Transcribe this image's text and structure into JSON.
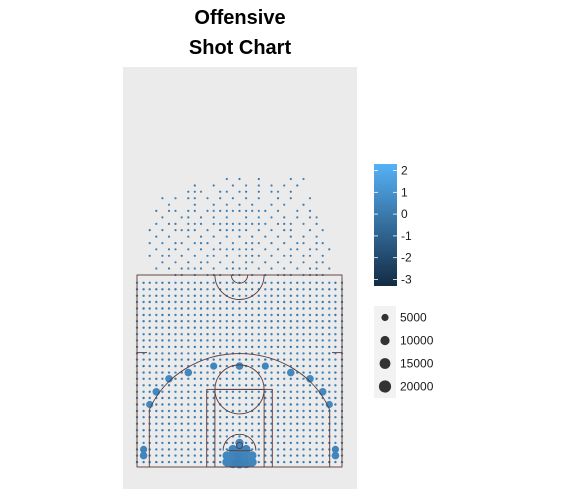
{
  "chart_data": {
    "type": "scatter",
    "title_lines": [
      "Offensive",
      "Shot Chart"
    ],
    "xlabel": "",
    "ylabel": "",
    "grid": false,
    "panel_background": "#ebebeb",
    "court_line_color": "#5a3a3a",
    "color_legend": {
      "ticks": [
        "2",
        "1",
        "0",
        "-1",
        "-2",
        "-3"
      ],
      "tick_values": [
        2,
        1,
        0,
        -1,
        -2,
        -3
      ],
      "range": [
        -3.3,
        2.3
      ],
      "low_color": "#132b43",
      "high_color": "#56b1f7",
      "placement": "right"
    },
    "size_legend": {
      "labels": [
        "5000",
        "10000",
        "15000",
        "20000"
      ],
      "values": [
        5000,
        10000,
        15000,
        20000
      ],
      "placement": "right"
    },
    "grid_x": [
      -25,
      -23.4,
      -21.9,
      -20.3,
      -18.8,
      -17.2,
      -15.6,
      -14.1,
      -12.5,
      -10.9,
      -9.4,
      -7.8,
      -6.3,
      -4.7,
      -3.1,
      -1.6,
      0,
      1.6,
      3.1,
      4.7,
      6.3,
      7.8,
      9.4,
      10.9,
      12.5,
      14.1,
      15.6,
      17.2,
      18.8,
      20.3,
      21.9,
      23.4,
      25
    ],
    "grid_y_rows": [
      1.2,
      2.8,
      4.3,
      5.9,
      7.5,
      9,
      10.6,
      12.2,
      13.7,
      15.3,
      16.9,
      18.4,
      20,
      21.6,
      23.1,
      24.7,
      26.3,
      27.8,
      29.4,
      31,
      32.5,
      34.1,
      35.7,
      37.2,
      38.8,
      40.4,
      41.9,
      43.5,
      45.1,
      46.6,
      48.2,
      49.8,
      51.3,
      52.9,
      54.5,
      56,
      57.6,
      59.2,
      60.7,
      62.3,
      63.9,
      65.4,
      67,
      68.6,
      70.1,
      71.7
    ],
    "sparse_rows": [
      {
        "y": 47,
        "x": [
          -15.6,
          -14.1,
          -10.9,
          -7.8,
          -6.3,
          -4.7,
          -1.6,
          0,
          3.1,
          6.3,
          9.4,
          10.9,
          12.5,
          15.6,
          17.2,
          18.8,
          20.3
        ]
      },
      {
        "y": 48.6,
        "x": [
          -20.3,
          -17.2,
          -14.1,
          -12.5,
          -10.9,
          -9.4,
          -6.3,
          -3.1,
          -1.6,
          0,
          1.6,
          4.7,
          7.8,
          10.9,
          14.1,
          17.2,
          18.8,
          21.9
        ]
      },
      {
        "y": 50.1,
        "x": [
          -18.8,
          -15.6,
          -12.5,
          -9.4,
          -7.8,
          -4.7,
          -1.6,
          1.6,
          3.1,
          6.3,
          9.4,
          12.5,
          15.6,
          18.8,
          20.3
        ]
      },
      {
        "y": 51.7,
        "x": [
          -21.9,
          -18.8,
          -17.2,
          -14.1,
          -10.9,
          -7.8,
          -6.3,
          -3.1,
          0,
          1.6,
          3.1,
          4.7,
          7.8,
          10.9,
          12.5,
          15.6,
          17.2,
          20.3
        ]
      },
      {
        "y": 53.3,
        "x": [
          -20.3,
          -17.2,
          -15.6,
          -12.5,
          -9.4,
          -6.3,
          -4.7,
          -3.1,
          -1.6,
          0,
          1.6,
          3.1,
          6.3,
          9.4,
          12.5,
          14.1,
          17.2,
          18.8,
          21.9
        ]
      },
      {
        "y": 54.8,
        "x": [
          -21.9,
          -18.8,
          -15.6,
          -14.1,
          -10.9,
          -9.4,
          -7.8,
          -4.7,
          -1.6,
          1.6,
          3.1,
          4.7,
          7.8,
          10.9,
          14.1,
          15.6,
          18.8,
          20.3
        ]
      },
      {
        "y": 56.4,
        "x": [
          -20.3,
          -17.2,
          -12.5,
          -9.4,
          -6.3,
          -3.1,
          0,
          3.1,
          6.3,
          9.4,
          12.5,
          15.6,
          18.8
        ]
      },
      {
        "y": 58,
        "x": [
          -21.9,
          -18.8,
          -15.6,
          -14.1,
          -12.5,
          -10.9,
          -7.8,
          -4.7,
          -3.1,
          -1.6,
          0,
          1.6,
          4.7,
          7.8,
          10.9,
          12.5,
          17.2,
          20.3
        ]
      },
      {
        "y": 59.5,
        "x": [
          -20.3,
          -17.2,
          -15.6,
          -12.5,
          -10.9,
          -9.4,
          -6.3,
          -4.7,
          -3.1,
          -1.6,
          0,
          1.6,
          3.1,
          4.7,
          6.3,
          9.4,
          10.9,
          12.5,
          15.6,
          18.8
        ]
      },
      {
        "y": 61.1,
        "x": [
          -18.8,
          -14.1,
          -12.5,
          -9.4,
          -6.3,
          -3.1,
          1.6,
          4.7,
          7.8,
          10.9,
          14.1,
          17.2,
          18.8
        ]
      },
      {
        "y": 62.7,
        "x": [
          -20.3,
          -17.2,
          -15.6,
          -12.5,
          -10.9,
          -7.8,
          -6.3,
          -4.7,
          -3.1,
          -1.6,
          0,
          1.6,
          3.1,
          4.7,
          6.3,
          9.4,
          14.1,
          17.2
        ]
      },
      {
        "y": 64.2,
        "x": [
          -17.2,
          -10.9,
          -6.3,
          -3.1,
          0,
          3.1,
          7.8,
          10.9,
          15.6
        ]
      },
      {
        "y": 65.8,
        "x": [
          -18.8,
          -15.6,
          -12.5,
          -10.9,
          -7.8,
          -4.7,
          -1.6,
          1.6,
          4.7,
          9.4,
          12.5,
          17.2
        ]
      },
      {
        "y": 67.4,
        "x": [
          -12.5,
          -10.9,
          -9.4,
          -4.7,
          -3.1,
          0,
          1.6,
          4.7,
          7.8,
          9.4,
          12.5
        ]
      },
      {
        "y": 68.9,
        "x": [
          -10.9,
          -6.3,
          -1.6,
          1.6,
          4.7,
          7.8,
          10.9,
          14.1
        ]
      },
      {
        "y": 70.5,
        "x": [
          -3.1,
          0,
          4.7,
          12.5,
          15.6
        ]
      }
    ],
    "highlight_points": [
      {
        "x": -1.6,
        "y": 1.2,
        "count": 19000,
        "z": 0.3
      },
      {
        "x": 0,
        "y": 1.2,
        "count": 22000,
        "z": 0.2
      },
      {
        "x": 1.6,
        "y": 1.2,
        "count": 19000,
        "z": 0.3
      },
      {
        "x": -3.1,
        "y": 1.2,
        "count": 9000,
        "z": 0.5
      },
      {
        "x": 3.1,
        "y": 1.2,
        "count": 9000,
        "z": 0.5
      },
      {
        "x": -1.6,
        "y": 2.8,
        "count": 12000,
        "z": 0.4
      },
      {
        "x": 0,
        "y": 2.8,
        "count": 15000,
        "z": 0.3
      },
      {
        "x": 1.6,
        "y": 2.8,
        "count": 12000,
        "z": 0.4
      },
      {
        "x": -3.1,
        "y": 2.8,
        "count": 8000,
        "z": 0.6
      },
      {
        "x": 3.1,
        "y": 2.8,
        "count": 8000,
        "z": 0.6
      },
      {
        "x": -1.6,
        "y": 4.3,
        "count": 9000,
        "z": 0.5
      },
      {
        "x": 0,
        "y": 4.3,
        "count": 10000,
        "z": 0.4
      },
      {
        "x": 1.6,
        "y": 4.3,
        "count": 9000,
        "z": 0.5
      },
      {
        "x": 0,
        "y": 5.9,
        "count": 7000,
        "z": 0.6
      },
      {
        "x": -23.4,
        "y": 2.8,
        "count": 6000,
        "z": 0.5
      },
      {
        "x": 23.4,
        "y": 2.8,
        "count": 6000,
        "z": 0.5
      },
      {
        "x": -23.4,
        "y": 4.3,
        "count": 5000,
        "z": 0.4
      },
      {
        "x": 23.4,
        "y": 4.3,
        "count": 5000,
        "z": 0.4
      },
      {
        "x": -21.9,
        "y": 15.3,
        "count": 5000,
        "z": 0.6
      },
      {
        "x": 21.9,
        "y": 15.3,
        "count": 5000,
        "z": 0.6
      },
      {
        "x": -20.3,
        "y": 18.4,
        "count": 6000,
        "z": 0.6
      },
      {
        "x": 20.3,
        "y": 18.4,
        "count": 6000,
        "z": 0.6
      },
      {
        "x": -17.2,
        "y": 21.6,
        "count": 6000,
        "z": 0.7
      },
      {
        "x": 17.2,
        "y": 21.6,
        "count": 6000,
        "z": 0.7
      },
      {
        "x": -12.5,
        "y": 23.1,
        "count": 6000,
        "z": 0.6
      },
      {
        "x": 12.5,
        "y": 23.1,
        "count": 6000,
        "z": 0.6
      },
      {
        "x": 0,
        "y": 24.7,
        "count": 6000,
        "z": 0.5
      },
      {
        "x": -6.3,
        "y": 24.7,
        "count": 5000,
        "z": 0.5
      },
      {
        "x": 6.3,
        "y": 24.7,
        "count": 5000,
        "z": 0.5
      }
    ]
  }
}
